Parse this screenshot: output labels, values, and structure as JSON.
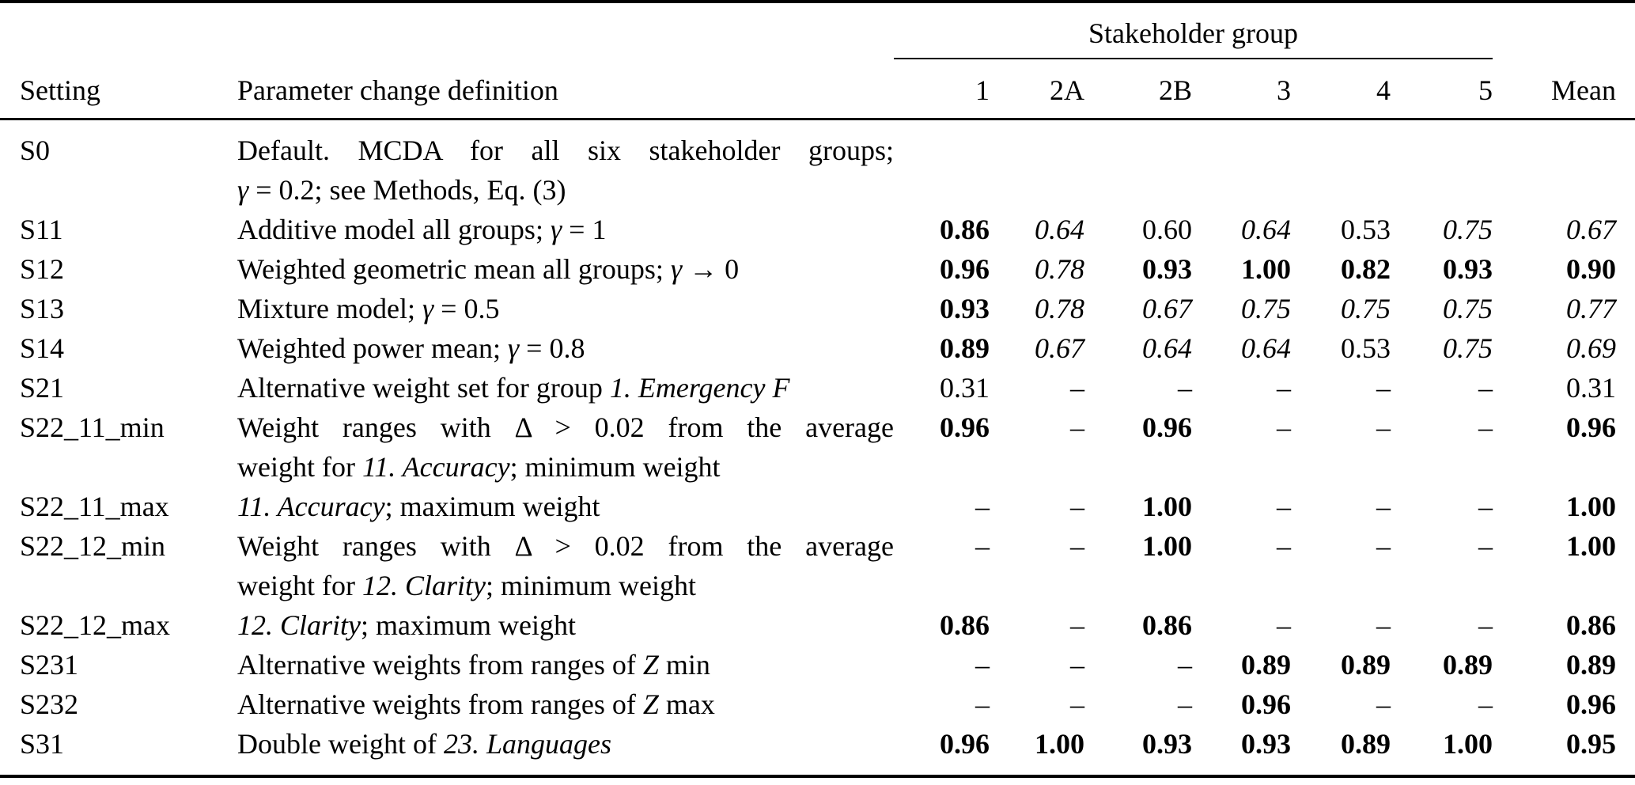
{
  "page": {
    "background": "#ffffff",
    "text_color": "#000000"
  },
  "table": {
    "header": {
      "setting": "Setting",
      "definition": "Parameter change definition",
      "group_label": "Stakeholder group",
      "group_cols": [
        "1",
        "2A",
        "2B",
        "3",
        "4",
        "5"
      ],
      "mean": "Mean"
    },
    "empty_cell_symbol": "–",
    "rows": [
      {
        "setting": "S0",
        "def_lines": [
          {
            "justify": true,
            "segments": [
              {
                "t": "Default. MCDA for all six stakeholder groups;",
                "s": "n"
              }
            ]
          },
          {
            "justify": false,
            "segments": [
              {
                "t": "γ",
                "s": "i"
              },
              {
                "t": " = 0.2; see Methods, Eq. (3)",
                "s": "n"
              }
            ]
          }
        ],
        "values": [
          {
            "t": "",
            "s": "n"
          },
          {
            "t": "",
            "s": "n"
          },
          {
            "t": "",
            "s": "n"
          },
          {
            "t": "",
            "s": "n"
          },
          {
            "t": "",
            "s": "n"
          },
          {
            "t": "",
            "s": "n"
          },
          {
            "t": "",
            "s": "n"
          }
        ]
      },
      {
        "setting": "S11",
        "def_lines": [
          {
            "justify": false,
            "segments": [
              {
                "t": "Additive model all groups; ",
                "s": "n"
              },
              {
                "t": "γ",
                "s": "i"
              },
              {
                "t": " = 1",
                "s": "n"
              }
            ]
          }
        ],
        "values": [
          {
            "t": "0.86",
            "s": "b"
          },
          {
            "t": "0.64",
            "s": "i"
          },
          {
            "t": "0.60",
            "s": "n"
          },
          {
            "t": "0.64",
            "s": "i"
          },
          {
            "t": "0.53",
            "s": "n"
          },
          {
            "t": "0.75",
            "s": "i"
          },
          {
            "t": "0.67",
            "s": "i"
          }
        ]
      },
      {
        "setting": "S12",
        "def_lines": [
          {
            "justify": false,
            "segments": [
              {
                "t": "Weighted geometric mean all groups; ",
                "s": "n"
              },
              {
                "t": "γ",
                "s": "i"
              },
              {
                "t": " → 0",
                "s": "n"
              }
            ]
          }
        ],
        "values": [
          {
            "t": "0.96",
            "s": "b"
          },
          {
            "t": "0.78",
            "s": "i"
          },
          {
            "t": "0.93",
            "s": "b"
          },
          {
            "t": "1.00",
            "s": "b"
          },
          {
            "t": "0.82",
            "s": "b"
          },
          {
            "t": "0.93",
            "s": "b"
          },
          {
            "t": "0.90",
            "s": "b"
          }
        ]
      },
      {
        "setting": "S13",
        "def_lines": [
          {
            "justify": false,
            "segments": [
              {
                "t": "Mixture model; ",
                "s": "n"
              },
              {
                "t": "γ",
                "s": "i"
              },
              {
                "t": " = 0.5",
                "s": "n"
              }
            ]
          }
        ],
        "values": [
          {
            "t": "0.93",
            "s": "b"
          },
          {
            "t": "0.78",
            "s": "i"
          },
          {
            "t": "0.67",
            "s": "i"
          },
          {
            "t": "0.75",
            "s": "i"
          },
          {
            "t": "0.75",
            "s": "i"
          },
          {
            "t": "0.75",
            "s": "i"
          },
          {
            "t": "0.77",
            "s": "i"
          }
        ]
      },
      {
        "setting": "S14",
        "def_lines": [
          {
            "justify": false,
            "segments": [
              {
                "t": "Weighted power mean; ",
                "s": "n"
              },
              {
                "t": "γ",
                "s": "i"
              },
              {
                "t": " = 0.8",
                "s": "n"
              }
            ]
          }
        ],
        "values": [
          {
            "t": "0.89",
            "s": "b"
          },
          {
            "t": "0.67",
            "s": "i"
          },
          {
            "t": "0.64",
            "s": "i"
          },
          {
            "t": "0.64",
            "s": "i"
          },
          {
            "t": "0.53",
            "s": "n"
          },
          {
            "t": "0.75",
            "s": "i"
          },
          {
            "t": "0.69",
            "s": "i"
          }
        ]
      },
      {
        "setting": "S21",
        "def_lines": [
          {
            "justify": false,
            "segments": [
              {
                "t": "Alternative weight set for group ",
                "s": "n"
              },
              {
                "t": "1. Emergency F",
                "s": "i"
              }
            ]
          }
        ],
        "values": [
          {
            "t": "0.31",
            "s": "n"
          },
          {
            "t": "–",
            "s": "n"
          },
          {
            "t": "–",
            "s": "n"
          },
          {
            "t": "–",
            "s": "n"
          },
          {
            "t": "–",
            "s": "n"
          },
          {
            "t": "–",
            "s": "n"
          },
          {
            "t": "0.31",
            "s": "n"
          }
        ]
      },
      {
        "setting": "S22_11_min",
        "def_lines": [
          {
            "justify": true,
            "segments": [
              {
                "t": "Weight ranges with Δ > 0.02 from the average",
                "s": "n"
              }
            ]
          },
          {
            "justify": false,
            "segments": [
              {
                "t": "weight for ",
                "s": "n"
              },
              {
                "t": "11. Accuracy",
                "s": "i"
              },
              {
                "t": "; minimum weight",
                "s": "n"
              }
            ]
          }
        ],
        "values": [
          {
            "t": "0.96",
            "s": "b"
          },
          {
            "t": "–",
            "s": "n"
          },
          {
            "t": "0.96",
            "s": "b"
          },
          {
            "t": "–",
            "s": "n"
          },
          {
            "t": "–",
            "s": "n"
          },
          {
            "t": "–",
            "s": "n"
          },
          {
            "t": "0.96",
            "s": "b"
          }
        ]
      },
      {
        "setting": "S22_11_max",
        "def_lines": [
          {
            "justify": false,
            "segments": [
              {
                "t": "11. Accuracy",
                "s": "i"
              },
              {
                "t": "; maximum weight",
                "s": "n"
              }
            ]
          }
        ],
        "values": [
          {
            "t": "–",
            "s": "n"
          },
          {
            "t": "–",
            "s": "n"
          },
          {
            "t": "1.00",
            "s": "b"
          },
          {
            "t": "–",
            "s": "n"
          },
          {
            "t": "–",
            "s": "n"
          },
          {
            "t": "–",
            "s": "n"
          },
          {
            "t": "1.00",
            "s": "b"
          }
        ]
      },
      {
        "setting": "S22_12_min",
        "def_lines": [
          {
            "justify": true,
            "segments": [
              {
                "t": "Weight ranges with Δ > 0.02 from the average",
                "s": "n"
              }
            ]
          },
          {
            "justify": false,
            "segments": [
              {
                "t": "weight for ",
                "s": "n"
              },
              {
                "t": "12. Clarity",
                "s": "i"
              },
              {
                "t": "; minimum weight",
                "s": "n"
              }
            ]
          }
        ],
        "values": [
          {
            "t": "–",
            "s": "n"
          },
          {
            "t": "–",
            "s": "n"
          },
          {
            "t": "1.00",
            "s": "b"
          },
          {
            "t": "–",
            "s": "n"
          },
          {
            "t": "–",
            "s": "n"
          },
          {
            "t": "–",
            "s": "n"
          },
          {
            "t": "1.00",
            "s": "b"
          }
        ]
      },
      {
        "setting": "S22_12_max",
        "def_lines": [
          {
            "justify": false,
            "segments": [
              {
                "t": "12. Clarity",
                "s": "i"
              },
              {
                "t": "; maximum weight",
                "s": "n"
              }
            ]
          }
        ],
        "values": [
          {
            "t": "0.86",
            "s": "b"
          },
          {
            "t": "–",
            "s": "n"
          },
          {
            "t": "0.86",
            "s": "b"
          },
          {
            "t": "–",
            "s": "n"
          },
          {
            "t": "–",
            "s": "n"
          },
          {
            "t": "–",
            "s": "n"
          },
          {
            "t": "0.86",
            "s": "b"
          }
        ]
      },
      {
        "setting": "S231",
        "def_lines": [
          {
            "justify": false,
            "segments": [
              {
                "t": "Alternative weights from ranges of ",
                "s": "n"
              },
              {
                "t": "Z",
                "s": "i"
              },
              {
                "t": " min",
                "s": "n"
              }
            ]
          }
        ],
        "values": [
          {
            "t": "–",
            "s": "n"
          },
          {
            "t": "–",
            "s": "n"
          },
          {
            "t": "–",
            "s": "n"
          },
          {
            "t": "0.89",
            "s": "b"
          },
          {
            "t": "0.89",
            "s": "b"
          },
          {
            "t": "0.89",
            "s": "b"
          },
          {
            "t": "0.89",
            "s": "b"
          }
        ]
      },
      {
        "setting": "S232",
        "def_lines": [
          {
            "justify": false,
            "segments": [
              {
                "t": "Alternative weights from ranges of ",
                "s": "n"
              },
              {
                "t": "Z",
                "s": "i"
              },
              {
                "t": " max",
                "s": "n"
              }
            ]
          }
        ],
        "values": [
          {
            "t": "–",
            "s": "n"
          },
          {
            "t": "–",
            "s": "n"
          },
          {
            "t": "–",
            "s": "n"
          },
          {
            "t": "0.96",
            "s": "b"
          },
          {
            "t": "–",
            "s": "n"
          },
          {
            "t": "–",
            "s": "n"
          },
          {
            "t": "0.96",
            "s": "b"
          }
        ]
      },
      {
        "setting": "S31",
        "def_lines": [
          {
            "justify": false,
            "segments": [
              {
                "t": "Double weight of ",
                "s": "n"
              },
              {
                "t": "23. Languages",
                "s": "i"
              }
            ]
          }
        ],
        "values": [
          {
            "t": "0.96",
            "s": "b"
          },
          {
            "t": "1.00",
            "s": "b"
          },
          {
            "t": "0.93",
            "s": "b"
          },
          {
            "t": "0.93",
            "s": "b"
          },
          {
            "t": "0.89",
            "s": "b"
          },
          {
            "t": "1.00",
            "s": "b"
          },
          {
            "t": "0.95",
            "s": "b"
          }
        ]
      }
    ]
  }
}
